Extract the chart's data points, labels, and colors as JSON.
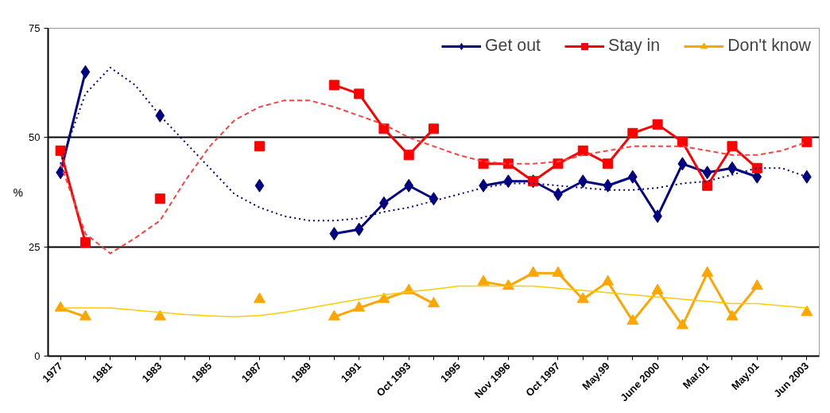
{
  "chart_data": {
    "type": "line",
    "ylabel": "%",
    "categories": [
      "1977",
      null,
      "1981",
      null,
      "1983",
      null,
      "1985",
      null,
      "1987",
      null,
      "1989",
      null,
      "1991",
      null,
      "Oct 1993",
      null,
      "1995",
      null,
      "Nov 1996",
      null,
      "Oct 1997",
      null,
      "May.99",
      null,
      "June 2000",
      null,
      "Mar.01",
      null,
      "May.01",
      null,
      "Jun 2003"
    ],
    "series": [
      {
        "name": "Get out",
        "color": "#000080",
        "marker": "diamond",
        "line_style": "solid",
        "values": [
          42,
          65,
          null,
          null,
          55,
          null,
          null,
          null,
          39,
          null,
          null,
          28,
          29,
          35,
          39,
          36,
          null,
          39,
          40,
          40,
          37,
          40,
          39,
          41,
          32,
          44,
          42,
          43,
          41,
          null,
          41
        ]
      },
      {
        "name": "Stay in",
        "color": "#ff0000",
        "marker": "square",
        "line_style": "solid",
        "values": [
          47,
          26,
          null,
          null,
          36,
          null,
          null,
          null,
          48,
          null,
          null,
          62,
          60,
          52,
          46,
          52,
          null,
          44,
          44,
          40,
          44,
          47,
          44,
          51,
          53,
          49,
          39,
          48,
          43,
          null,
          49
        ]
      },
      {
        "name": "Don't know",
        "color": "#ffa500",
        "marker": "triangle",
        "line_style": "solid",
        "values": [
          11,
          9,
          null,
          null,
          9,
          null,
          null,
          null,
          13,
          null,
          null,
          9,
          11,
          13,
          15,
          12,
          null,
          17,
          16,
          19,
          19,
          13,
          17,
          8,
          15,
          7,
          19,
          9,
          16,
          null,
          10
        ]
      },
      {
        "color": "#000080",
        "marker": "none",
        "line_style": "dotted",
        "values": [
          44,
          60,
          66,
          62,
          55,
          49,
          43,
          37,
          34,
          32,
          31,
          31,
          31.5,
          33,
          34,
          35.5,
          37,
          38.5,
          39.5,
          39.5,
          39,
          38.5,
          38,
          38,
          38.5,
          39.5,
          40,
          41.5,
          43,
          43,
          41
        ]
      },
      {
        "color": "#ff4040",
        "marker": "none",
        "line_style": "dashed",
        "values": [
          44,
          28,
          23.5,
          27,
          31,
          40,
          48,
          54,
          57,
          58.5,
          58.5,
          57,
          55,
          53,
          50,
          48,
          46,
          44.5,
          44,
          44,
          44.5,
          46,
          47,
          48,
          48,
          48,
          47,
          46,
          46,
          47,
          49
        ]
      },
      {
        "color": "#ffcc00",
        "marker": "none",
        "line_style": "solid",
        "values": [
          11,
          11,
          11,
          10.5,
          10,
          9.5,
          9.2,
          9,
          9.3,
          10,
          11,
          12,
          13,
          14,
          14.7,
          15.3,
          16,
          16,
          16,
          16,
          15.5,
          15,
          14.5,
          14,
          13.5,
          13,
          12.5,
          12,
          12,
          11.5,
          11
        ]
      }
    ],
    "ylim": [
      0,
      75
    ],
    "yticks": [
      0,
      25,
      50,
      75
    ],
    "grid": "y",
    "legend": "top right"
  }
}
